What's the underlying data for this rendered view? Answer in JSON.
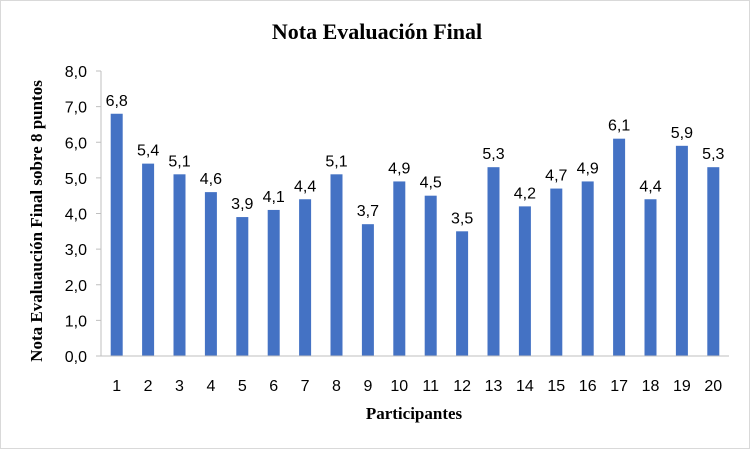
{
  "chart_data": {
    "type": "bar",
    "title": "Nota Evaluación Final",
    "xlabel": "Participantes",
    "ylabel": "Nota Evaluaución Final sobre 8 puntos",
    "categories": [
      "1",
      "2",
      "3",
      "4",
      "5",
      "6",
      "7",
      "8",
      "9",
      "10",
      "11",
      "12",
      "13",
      "14",
      "15",
      "16",
      "17",
      "18",
      "19",
      "20"
    ],
    "values": [
      6.8,
      5.4,
      5.1,
      4.6,
      3.9,
      4.1,
      4.4,
      5.1,
      3.7,
      4.9,
      4.5,
      3.5,
      5.3,
      4.2,
      4.7,
      4.9,
      6.1,
      4.4,
      5.9,
      5.3
    ],
    "data_labels": [
      "6,8",
      "5,4",
      "5,1",
      "4,6",
      "3,9",
      "4,1",
      "4,4",
      "5,1",
      "3,7",
      "4,9",
      "4,5",
      "3,5",
      "5,3",
      "4,2",
      "4,7",
      "4,9",
      "6,1",
      "4,4",
      "5,9",
      "5,3"
    ],
    "yticks": [
      0,
      1,
      2,
      3,
      4,
      5,
      6,
      7,
      8
    ],
    "ytick_labels": [
      "0,0",
      "1,0",
      "2,0",
      "3,0",
      "4,0",
      "5,0",
      "6,0",
      "7,0",
      "8,0"
    ],
    "ylim": [
      0,
      8
    ],
    "grid": false,
    "legend": "none",
    "bar_color": "#4472c4"
  }
}
